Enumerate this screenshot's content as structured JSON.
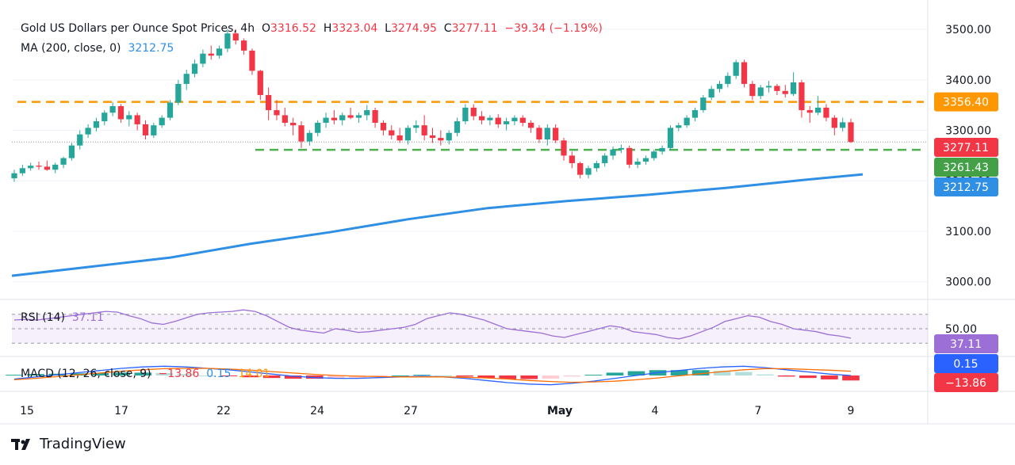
{
  "header": {
    "title": "Gold US Dollars per Ounce Spot Prices",
    "interval": "4h",
    "open_label": "O",
    "open": "3316.52",
    "high_label": "H",
    "high": "3323.04",
    "low_label": "L",
    "low": "3274.95",
    "close_label": "C",
    "close": "3277.11",
    "change": "−39.34 (−1.19%)",
    "ma_label": "MA (200, close, 0)",
    "ma_value": "3212.75"
  },
  "rsi_header": {
    "label": "RSI (14)",
    "value": "37.11"
  },
  "macd_header": {
    "label": "MACD (12, 26, close, 9)",
    "hist": "−13.86",
    "macd": "0.15",
    "signal": "14.01"
  },
  "brand": {
    "name": "TradingView"
  },
  "colors": {
    "up": "#26a69a",
    "down": "#f23645",
    "ma": "#2f8fe5",
    "resistance": "#ff9800",
    "support": "#4caf50",
    "rsi": "#9c6fd6",
    "macd_line": "#2962ff",
    "signal_line": "#ff6d00"
  },
  "chart_data": {
    "type": "candlestick",
    "x_ticks": [
      "15",
      "17",
      "22",
      "24",
      "27",
      "May",
      "4",
      "7",
      "9"
    ],
    "y_ticks": [
      "3000.00",
      "3100.00",
      "3200.00",
      "3300.00",
      "3400.00",
      "3500.00"
    ],
    "ylim": [
      2965,
      3530
    ],
    "resistance_level": 3356.4,
    "support_level": 3261.43,
    "price_labels": {
      "resistance": "3356.40",
      "close": "3277.11",
      "support": "3261.43",
      "ma": "3212.75"
    },
    "candles": [
      [
        3205,
        3222,
        3198,
        3215
      ],
      [
        3215,
        3232,
        3210,
        3225
      ],
      [
        3225,
        3236,
        3220,
        3230
      ],
      [
        3230,
        3238,
        3222,
        3228
      ],
      [
        3228,
        3240,
        3220,
        3222
      ],
      [
        3222,
        3236,
        3215,
        3232
      ],
      [
        3232,
        3248,
        3225,
        3245
      ],
      [
        3245,
        3275,
        3240,
        3270
      ],
      [
        3270,
        3300,
        3262,
        3292
      ],
      [
        3292,
        3312,
        3285,
        3305
      ],
      [
        3305,
        3325,
        3298,
        3318
      ],
      [
        3318,
        3340,
        3310,
        3335
      ],
      [
        3335,
        3356,
        3328,
        3348
      ],
      [
        3348,
        3352,
        3315,
        3322
      ],
      [
        3322,
        3338,
        3308,
        3330
      ],
      [
        3330,
        3335,
        3300,
        3312
      ],
      [
        3312,
        3320,
        3282,
        3290
      ],
      [
        3290,
        3315,
        3285,
        3310
      ],
      [
        3310,
        3330,
        3305,
        3325
      ],
      [
        3325,
        3360,
        3320,
        3355
      ],
      [
        3355,
        3400,
        3350,
        3392
      ],
      [
        3392,
        3420,
        3380,
        3412
      ],
      [
        3412,
        3440,
        3405,
        3432
      ],
      [
        3432,
        3460,
        3425,
        3452
      ],
      [
        3452,
        3468,
        3440,
        3448
      ],
      [
        3448,
        3468,
        3442,
        3462
      ],
      [
        3462,
        3500,
        3455,
        3492
      ],
      [
        3492,
        3500,
        3470,
        3478
      ],
      [
        3478,
        3482,
        3450,
        3458
      ],
      [
        3458,
        3462,
        3410,
        3418
      ],
      [
        3418,
        3420,
        3360,
        3370
      ],
      [
        3370,
        3385,
        3320,
        3340
      ],
      [
        3340,
        3360,
        3320,
        3330
      ],
      [
        3330,
        3345,
        3308,
        3315
      ],
      [
        3315,
        3325,
        3290,
        3310
      ],
      [
        3310,
        3318,
        3265,
        3278
      ],
      [
        3278,
        3300,
        3270,
        3295
      ],
      [
        3295,
        3320,
        3288,
        3315
      ],
      [
        3315,
        3335,
        3305,
        3325
      ],
      [
        3325,
        3340,
        3312,
        3320
      ],
      [
        3320,
        3335,
        3310,
        3330
      ],
      [
        3330,
        3345,
        3322,
        3325
      ],
      [
        3325,
        3335,
        3315,
        3330
      ],
      [
        3330,
        3350,
        3320,
        3340
      ],
      [
        3340,
        3345,
        3305,
        3315
      ],
      [
        3315,
        3320,
        3290,
        3300
      ],
      [
        3300,
        3310,
        3282,
        3290
      ],
      [
        3290,
        3305,
        3275,
        3280
      ],
      [
        3280,
        3310,
        3272,
        3305
      ],
      [
        3305,
        3320,
        3295,
        3310
      ],
      [
        3310,
        3330,
        3280,
        3290
      ],
      [
        3290,
        3305,
        3275,
        3285
      ],
      [
        3285,
        3300,
        3270,
        3280
      ],
      [
        3280,
        3300,
        3272,
        3295
      ],
      [
        3295,
        3325,
        3288,
        3318
      ],
      [
        3318,
        3352,
        3312,
        3345
      ],
      [
        3345,
        3352,
        3320,
        3328
      ],
      [
        3328,
        3338,
        3312,
        3320
      ],
      [
        3320,
        3330,
        3310,
        3325
      ],
      [
        3325,
        3332,
        3305,
        3312
      ],
      [
        3312,
        3325,
        3300,
        3318
      ],
      [
        3318,
        3330,
        3310,
        3325
      ],
      [
        3325,
        3330,
        3308,
        3315
      ],
      [
        3315,
        3320,
        3295,
        3305
      ],
      [
        3305,
        3310,
        3275,
        3282
      ],
      [
        3282,
        3312,
        3270,
        3305
      ],
      [
        3305,
        3312,
        3275,
        3280
      ],
      [
        3280,
        3285,
        3240,
        3250
      ],
      [
        3250,
        3258,
        3225,
        3235
      ],
      [
        3235,
        3238,
        3205,
        3212
      ],
      [
        3212,
        3230,
        3205,
        3225
      ],
      [
        3225,
        3240,
        3218,
        3235
      ],
      [
        3235,
        3255,
        3228,
        3250
      ],
      [
        3250,
        3268,
        3242,
        3262
      ],
      [
        3262,
        3272,
        3255,
        3265
      ],
      [
        3265,
        3270,
        3225,
        3232
      ],
      [
        3232,
        3245,
        3225,
        3238
      ],
      [
        3238,
        3250,
        3232,
        3245
      ],
      [
        3245,
        3262,
        3240,
        3258
      ],
      [
        3258,
        3270,
        3252,
        3265
      ],
      [
        3265,
        3310,
        3260,
        3305
      ],
      [
        3305,
        3315,
        3298,
        3310
      ],
      [
        3310,
        3330,
        3305,
        3325
      ],
      [
        3325,
        3345,
        3318,
        3340
      ],
      [
        3340,
        3370,
        3335,
        3365
      ],
      [
        3365,
        3388,
        3360,
        3382
      ],
      [
        3382,
        3398,
        3375,
        3392
      ],
      [
        3392,
        3415,
        3385,
        3408
      ],
      [
        3408,
        3440,
        3402,
        3435
      ],
      [
        3435,
        3440,
        3385,
        3392
      ],
      [
        3392,
        3398,
        3360,
        3368
      ],
      [
        3368,
        3390,
        3362,
        3385
      ],
      [
        3385,
        3398,
        3375,
        3388
      ],
      [
        3388,
        3392,
        3370,
        3378
      ],
      [
        3378,
        3390,
        3365,
        3372
      ],
      [
        3372,
        3415,
        3368,
        3395
      ],
      [
        3395,
        3400,
        3325,
        3340
      ],
      [
        3340,
        3348,
        3315,
        3335
      ],
      [
        3335,
        3368,
        3330,
        3345
      ],
      [
        3345,
        3352,
        3318,
        3325
      ],
      [
        3325,
        3330,
        3290,
        3305
      ],
      [
        3305,
        3325,
        3298,
        3316
      ],
      [
        3316,
        3323,
        3275,
        3277
      ]
    ],
    "ma200": [
      [
        0,
        3012
      ],
      [
        100,
        3030
      ],
      [
        200,
        3048
      ],
      [
        300,
        3075
      ],
      [
        400,
        3098
      ],
      [
        500,
        3124
      ],
      [
        600,
        3146
      ],
      [
        700,
        3160
      ],
      [
        800,
        3172
      ],
      [
        900,
        3186
      ],
      [
        1000,
        3202
      ],
      [
        1073,
        3212.75
      ]
    ],
    "rsi": {
      "ylim": [
        15,
        85
      ],
      "upper": 70,
      "middle": 50,
      "lower": 30,
      "tick": "50.00",
      "values": [
        62,
        63,
        62,
        64,
        66,
        68,
        70,
        72,
        74,
        73,
        68,
        64,
        58,
        56,
        60,
        65,
        70,
        72,
        73,
        74,
        76,
        74,
        68,
        60,
        52,
        48,
        46,
        44,
        50,
        48,
        45,
        46,
        48,
        50,
        52,
        56,
        64,
        68,
        72,
        70,
        66,
        62,
        56,
        50,
        48,
        46,
        44,
        40,
        38,
        42,
        46,
        50,
        54,
        52,
        46,
        44,
        42,
        38,
        36,
        40,
        46,
        52,
        60,
        64,
        68,
        66,
        60,
        56,
        50,
        48,
        46,
        42,
        40,
        37
      ]
    },
    "macd": {
      "ylim": [
        -40,
        40
      ],
      "macd_line": [
        -10,
        -4,
        2,
        8,
        14,
        20,
        24,
        26,
        24,
        20,
        16,
        10,
        4,
        -2,
        -6,
        -8,
        -8,
        -6,
        -4,
        -2,
        -4,
        -8,
        -14,
        -20,
        -24,
        -26,
        -22,
        -16,
        -8,
        0,
        8,
        14,
        20,
        24,
        26,
        22,
        16,
        10,
        4,
        0
      ],
      "signal_line": [
        -12,
        -8,
        -3,
        2,
        7,
        12,
        16,
        19,
        20,
        20,
        18,
        15,
        11,
        7,
        3,
        0,
        -2,
        -3,
        -4,
        -4,
        -4,
        -5,
        -7,
        -10,
        -14,
        -17,
        -19,
        -18,
        -16,
        -12,
        -7,
        -1,
        5,
        11,
        16,
        19,
        19,
        17,
        15,
        12
      ],
      "histogram": [
        2,
        4,
        5,
        6,
        7,
        8,
        8,
        7,
        4,
        0,
        -2,
        -5,
        -7,
        -9,
        -9,
        -8,
        -6,
        -3,
        0,
        2,
        0,
        -3,
        -7,
        -10,
        -10,
        -9,
        -3,
        2,
        8,
        12,
        15,
        15,
        15,
        13,
        10,
        3,
        -3,
        -7,
        -11,
        -14
      ]
    }
  }
}
